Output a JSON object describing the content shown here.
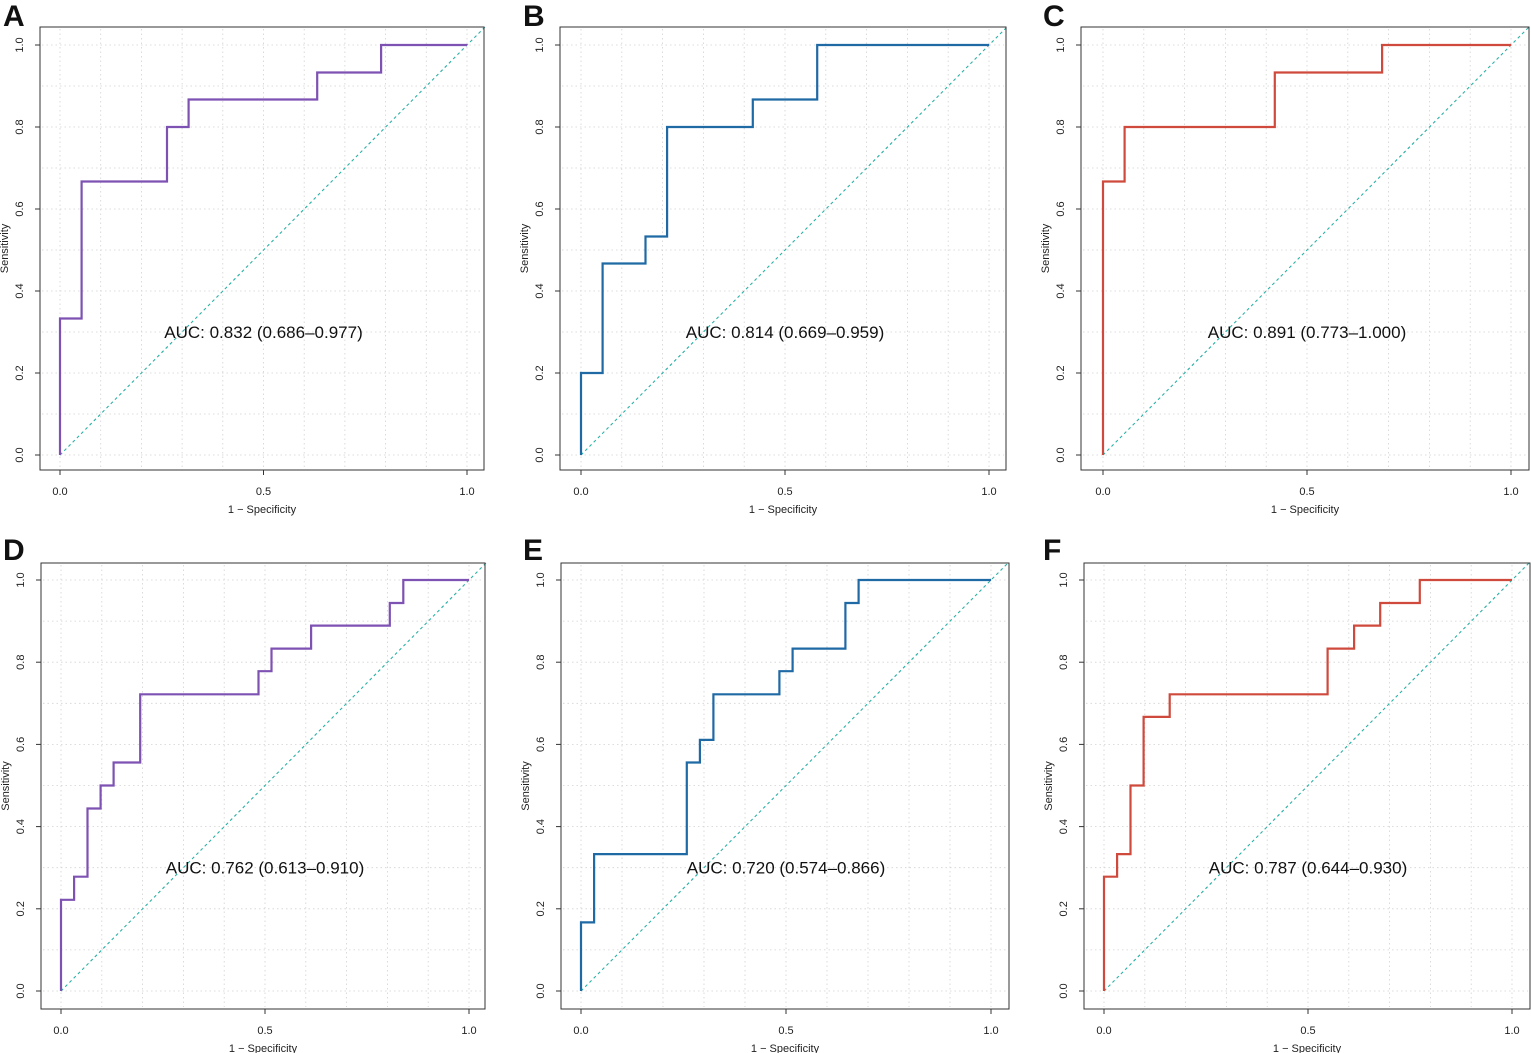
{
  "figure": {
    "colors": {
      "purple": "#7e52b3",
      "blue": "#1f6aa5",
      "red": "#cf4a3c",
      "diagonal": "#2ab0a5",
      "grid": "#d2d2d2",
      "axis": "#333333"
    }
  },
  "chart_data": [
    {
      "panel": "A",
      "type": "line",
      "color_key": "purple",
      "xlabel": "1 − Specificity",
      "ylabel": "Sensitivity",
      "xlim": [
        0,
        1
      ],
      "ylim": [
        0,
        1
      ],
      "xticks": [
        "0.0",
        "0.5",
        "1.0"
      ],
      "yticks": [
        "0.0",
        "0.2",
        "0.4",
        "0.6",
        "0.8",
        "1.0"
      ],
      "grid": true,
      "diagonal": true,
      "annotation": "AUC: 0.832 (0.686–0.977)",
      "x": [
        0,
        0,
        0.053,
        0.053,
        0.263,
        0.263,
        0.316,
        0.316,
        0.632,
        0.632,
        0.789,
        0.789,
        1
      ],
      "y": [
        0,
        0.333,
        0.333,
        0.667,
        0.667,
        0.8,
        0.8,
        0.867,
        0.867,
        0.933,
        0.933,
        1,
        1
      ]
    },
    {
      "panel": "B",
      "type": "line",
      "color_key": "blue",
      "xlabel": "1 − Specificity",
      "ylabel": "Sensitivity",
      "xlim": [
        0,
        1
      ],
      "ylim": [
        0,
        1
      ],
      "xticks": [
        "0.0",
        "0.5",
        "1.0"
      ],
      "yticks": [
        "0.0",
        "0.2",
        "0.4",
        "0.6",
        "0.8",
        "1.0"
      ],
      "grid": true,
      "diagonal": true,
      "annotation": "AUC: 0.814 (0.669–0.959)",
      "x": [
        0,
        0,
        0.053,
        0.053,
        0.158,
        0.158,
        0.211,
        0.211,
        0.421,
        0.421,
        0.579,
        0.579,
        1
      ],
      "y": [
        0,
        0.2,
        0.2,
        0.467,
        0.467,
        0.533,
        0.533,
        0.8,
        0.8,
        0.867,
        0.867,
        1,
        1
      ]
    },
    {
      "panel": "C",
      "type": "line",
      "color_key": "red",
      "xlabel": "1 − Specificity",
      "ylabel": "Sensitivity",
      "xlim": [
        0,
        1
      ],
      "ylim": [
        0,
        1
      ],
      "xticks": [
        "0.0",
        "0.5",
        "1.0"
      ],
      "yticks": [
        "0.0",
        "0.2",
        "0.4",
        "0.6",
        "0.8",
        "1.0"
      ],
      "grid": true,
      "diagonal": true,
      "annotation": "AUC: 0.891 (0.773–1.000)",
      "x": [
        0,
        0,
        0.053,
        0.053,
        0.421,
        0.421,
        0.684,
        0.684,
        1
      ],
      "y": [
        0,
        0.667,
        0.667,
        0.8,
        0.8,
        0.933,
        0.933,
        1,
        1
      ]
    },
    {
      "panel": "D",
      "type": "line",
      "color_key": "purple",
      "xlabel": "1 − Specificity",
      "ylabel": "Sensitivity",
      "xlim": [
        0,
        1
      ],
      "ylim": [
        0,
        1
      ],
      "xticks": [
        "0.0",
        "0.5",
        "1.0"
      ],
      "yticks": [
        "0.0",
        "0.2",
        "0.4",
        "0.6",
        "0.8",
        "1.0"
      ],
      "grid": true,
      "diagonal": true,
      "annotation": "AUC: 0.762 (0.613–0.910)",
      "x": [
        0,
        0,
        0.032,
        0.032,
        0.065,
        0.065,
        0.097,
        0.097,
        0.129,
        0.129,
        0.194,
        0.194,
        0.484,
        0.484,
        0.516,
        0.516,
        0.613,
        0.613,
        0.806,
        0.806,
        0.839,
        0.839,
        1
      ],
      "y": [
        0,
        0.222,
        0.222,
        0.278,
        0.278,
        0.444,
        0.444,
        0.5,
        0.5,
        0.556,
        0.556,
        0.722,
        0.722,
        0.778,
        0.778,
        0.833,
        0.833,
        0.889,
        0.889,
        0.944,
        0.944,
        1,
        1
      ]
    },
    {
      "panel": "E",
      "type": "line",
      "color_key": "blue",
      "xlabel": "1 − Specificity",
      "ylabel": "Sensitivity",
      "xlim": [
        0,
        1
      ],
      "ylim": [
        0,
        1
      ],
      "xticks": [
        "0.0",
        "0.5",
        "1.0"
      ],
      "yticks": [
        "0.0",
        "0.2",
        "0.4",
        "0.6",
        "0.8",
        "1.0"
      ],
      "grid": true,
      "diagonal": true,
      "annotation": "AUC: 0.720 (0.574–0.866)",
      "x": [
        0,
        0,
        0.032,
        0.032,
        0.258,
        0.258,
        0.29,
        0.29,
        0.323,
        0.323,
        0.484,
        0.484,
        0.516,
        0.516,
        0.645,
        0.645,
        0.677,
        0.677,
        1
      ],
      "y": [
        0,
        0.167,
        0.167,
        0.333,
        0.333,
        0.556,
        0.556,
        0.611,
        0.611,
        0.722,
        0.722,
        0.778,
        0.778,
        0.833,
        0.833,
        0.944,
        0.944,
        1,
        1
      ]
    },
    {
      "panel": "F",
      "type": "line",
      "color_key": "red",
      "xlabel": "1 − Specificity",
      "ylabel": "Sensitivity",
      "xlim": [
        0,
        1
      ],
      "ylim": [
        0,
        1
      ],
      "xticks": [
        "0.0",
        "0.5",
        "1.0"
      ],
      "yticks": [
        "0.0",
        "0.2",
        "0.4",
        "0.6",
        "0.8",
        "1.0"
      ],
      "grid": true,
      "diagonal": true,
      "annotation": "AUC: 0.787 (0.644–0.930)",
      "x": [
        0,
        0,
        0.032,
        0.032,
        0.065,
        0.065,
        0.097,
        0.097,
        0.161,
        0.161,
        0.548,
        0.548,
        0.613,
        0.613,
        0.677,
        0.677,
        0.774,
        0.774,
        1
      ],
      "y": [
        0,
        0.278,
        0.278,
        0.333,
        0.333,
        0.5,
        0.5,
        0.667,
        0.667,
        0.722,
        0.722,
        0.833,
        0.833,
        0.889,
        0.889,
        0.944,
        0.944,
        1,
        1
      ]
    }
  ]
}
